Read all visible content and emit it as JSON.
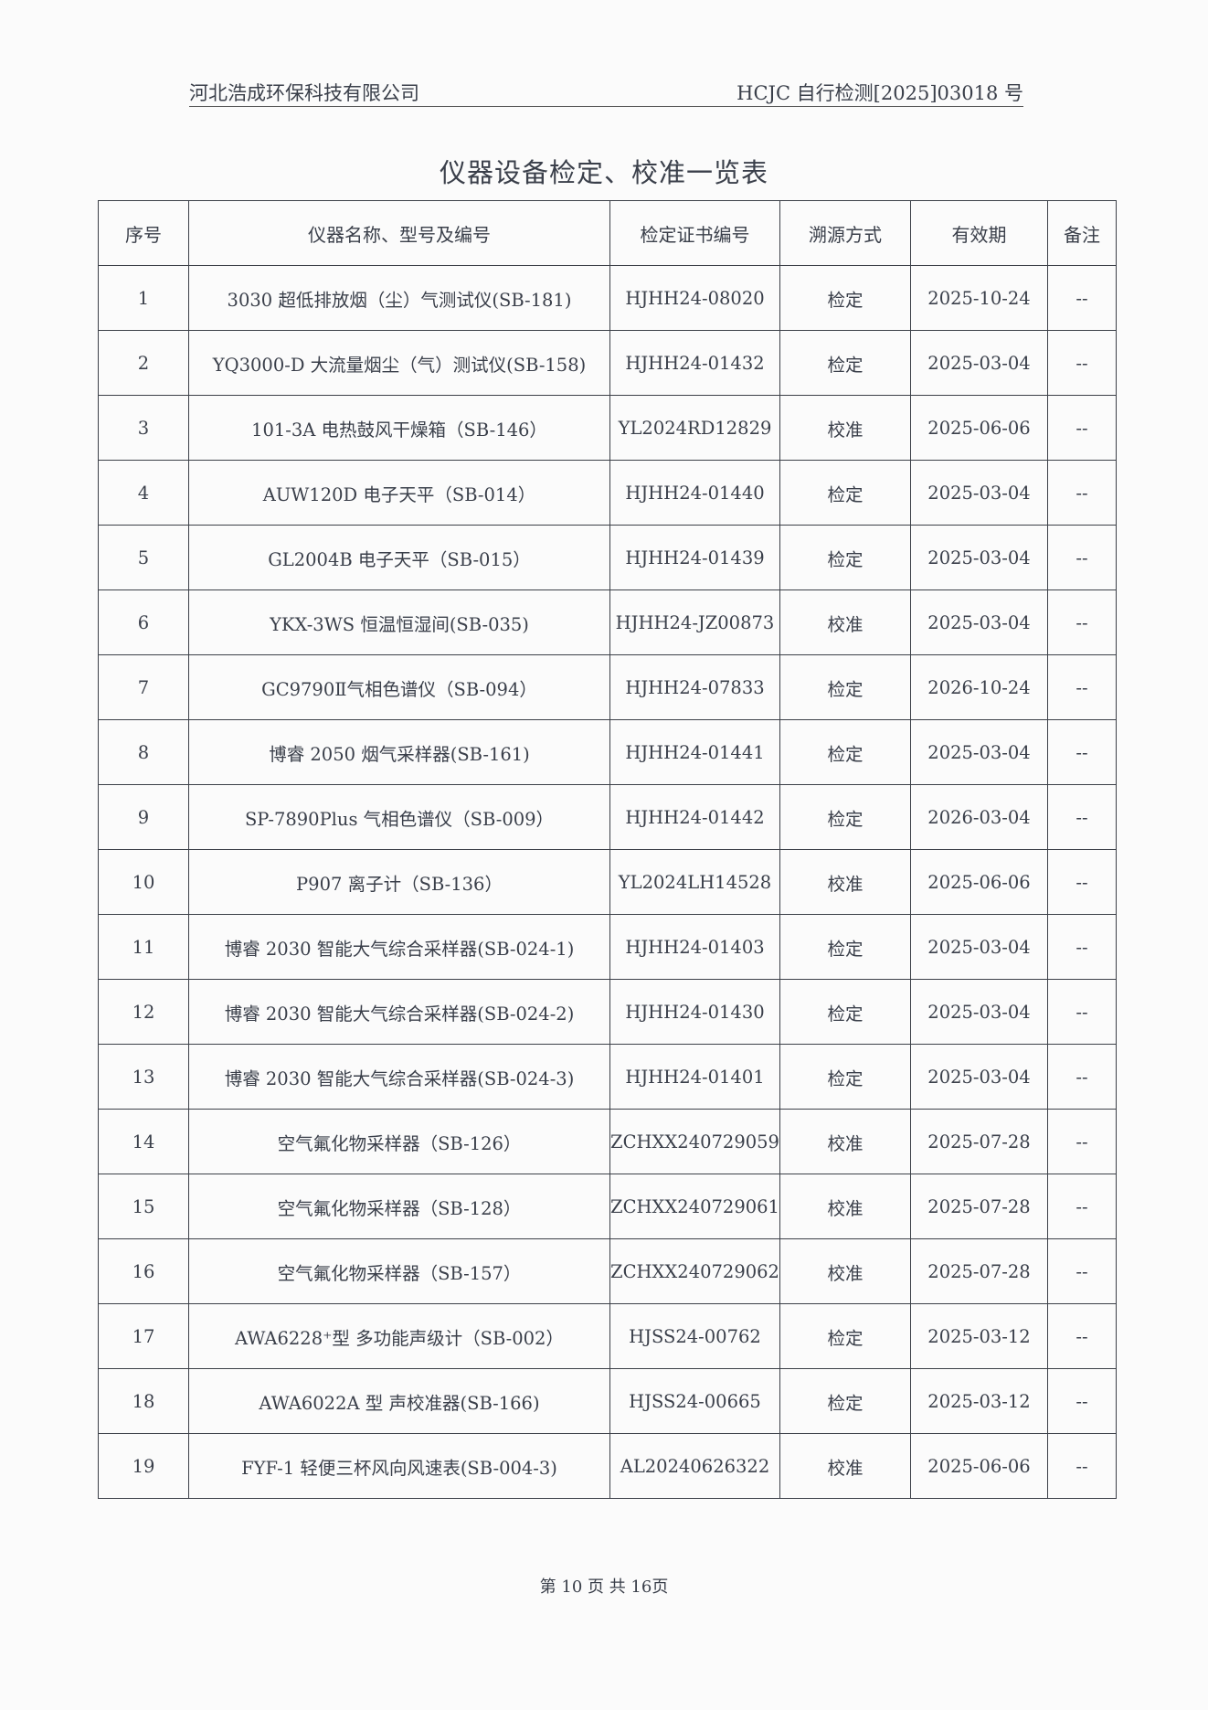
{
  "header": {
    "company": "河北浩成环保科技有限公司",
    "report_no": "HCJC 自行检测[2025]03018 号"
  },
  "title": "仪器设备检定、校准一览表",
  "table": {
    "columns": [
      "序号",
      "仪器名称、型号及编号",
      "检定证书编号",
      "溯源方式",
      "有效期",
      "备注"
    ],
    "rows": [
      [
        "1",
        "3030 超低排放烟（尘）气测试仪(SB-181)",
        "HJHH24-08020",
        "检定",
        "2025-10-24",
        "--"
      ],
      [
        "2",
        "YQ3000-D 大流量烟尘（气）测试仪(SB-158)",
        "HJHH24-01432",
        "检定",
        "2025-03-04",
        "--"
      ],
      [
        "3",
        "101-3A 电热鼓风干燥箱（SB-146）",
        "YL2024RD12829",
        "校准",
        "2025-06-06",
        "--"
      ],
      [
        "4",
        "AUW120D 电子天平（SB-014）",
        "HJHH24-01440",
        "检定",
        "2025-03-04",
        "--"
      ],
      [
        "5",
        "GL2004B 电子天平（SB-015）",
        "HJHH24-01439",
        "检定",
        "2025-03-04",
        "--"
      ],
      [
        "6",
        "YKX-3WS 恒温恒湿间(SB-035)",
        "HJHH24-JZ00873",
        "校准",
        "2025-03-04",
        "--"
      ],
      [
        "7",
        "GC9790Ⅱ气相色谱仪（SB-094）",
        "HJHH24-07833",
        "检定",
        "2026-10-24",
        "--"
      ],
      [
        "8",
        "博睿 2050 烟气采样器(SB-161)",
        "HJHH24-01441",
        "检定",
        "2025-03-04",
        "--"
      ],
      [
        "9",
        "SP-7890Plus 气相色谱仪（SB-009）",
        "HJHH24-01442",
        "检定",
        "2026-03-04",
        "--"
      ],
      [
        "10",
        "P907 离子计（SB-136）",
        "YL2024LH14528",
        "校准",
        "2025-06-06",
        "--"
      ],
      [
        "11",
        "博睿 2030 智能大气综合采样器(SB-024-1)",
        "HJHH24-01403",
        "检定",
        "2025-03-04",
        "--"
      ],
      [
        "12",
        "博睿 2030 智能大气综合采样器(SB-024-2)",
        "HJHH24-01430",
        "检定",
        "2025-03-04",
        "--"
      ],
      [
        "13",
        "博睿 2030 智能大气综合采样器(SB-024-3)",
        "HJHH24-01401",
        "检定",
        "2025-03-04",
        "--"
      ],
      [
        "14",
        "空气氟化物采样器（SB-126）",
        "ZCHXX240729059",
        "校准",
        "2025-07-28",
        "--"
      ],
      [
        "15",
        "空气氟化物采样器（SB-128）",
        "ZCHXX240729061",
        "校准",
        "2025-07-28",
        "--"
      ],
      [
        "16",
        "空气氟化物采样器（SB-157）",
        "ZCHXX240729062",
        "校准",
        "2025-07-28",
        "--"
      ],
      [
        "17",
        "AWA6228⁺型 多功能声级计（SB-002）",
        "HJSS24-00762",
        "检定",
        "2025-03-12",
        "--"
      ],
      [
        "18",
        "AWA6022A 型 声校准器(SB-166)",
        "HJSS24-00665",
        "检定",
        "2025-03-12",
        "--"
      ],
      [
        "19",
        "FYF-1 轻便三杯风向风速表(SB-004-3)",
        "AL20240626322",
        "校准",
        "2025-06-06",
        "--"
      ]
    ]
  },
  "footer": {
    "page": "第 10 页 共 16页"
  }
}
